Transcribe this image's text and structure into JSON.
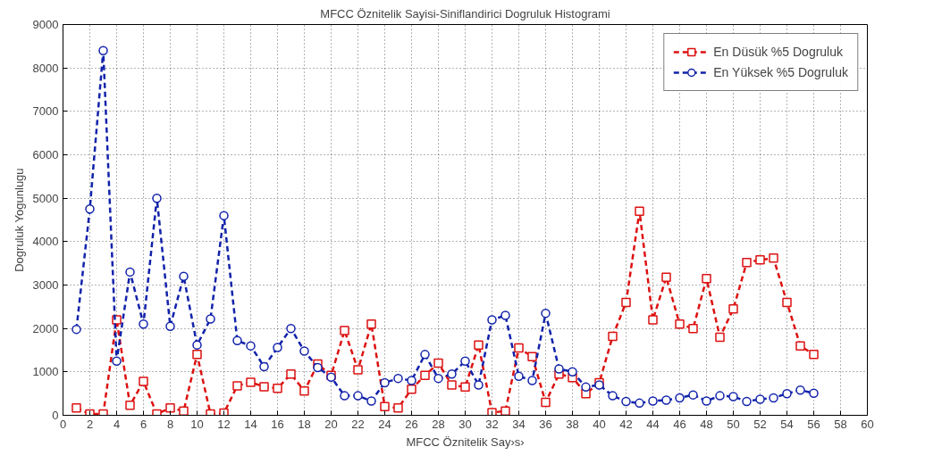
{
  "chart_data": {
    "type": "line",
    "title": "MFCC Öznitelik Sayisi-Siniflandirici Dogruluk Histogrami",
    "xlabel": "MFCC Öznitelik Say›s›",
    "ylabel": "Dogruluk Yogunlugu",
    "x": [
      1,
      2,
      3,
      4,
      5,
      6,
      7,
      8,
      9,
      10,
      11,
      12,
      13,
      14,
      15,
      16,
      17,
      18,
      19,
      20,
      21,
      22,
      23,
      24,
      25,
      26,
      27,
      28,
      29,
      30,
      31,
      32,
      33,
      34,
      35,
      36,
      37,
      38,
      39,
      40,
      41,
      42,
      43,
      44,
      45,
      46,
      47,
      48,
      49,
      50,
      51,
      52,
      53,
      54,
      55,
      56
    ],
    "series": [
      {
        "name": "En Düsük %5 Dogruluk",
        "color": "#dd1111",
        "marker": "square",
        "values": [
          170,
          30,
          30,
          2200,
          230,
          780,
          30,
          170,
          100,
          1400,
          30,
          50,
          680,
          760,
          660,
          620,
          950,
          560,
          1180,
          920,
          1950,
          1050,
          2100,
          200,
          170,
          600,
          920,
          1200,
          700,
          650,
          1620,
          60,
          100,
          1550,
          1350,
          300,
          950,
          870,
          500,
          750,
          1820,
          2600,
          4700,
          2200,
          3180,
          2100,
          2000,
          3150,
          1800,
          2450,
          3520,
          3580,
          3620,
          2600,
          1600,
          1400
        ]
      },
      {
        "name": "En Yüksek %5 Dogruluk",
        "color": "#1122aa",
        "marker": "circle",
        "values": [
          1980,
          4750,
          8400,
          1250,
          3300,
          2100,
          5000,
          2050,
          3200,
          1620,
          2220,
          4600,
          1720,
          1600,
          1120,
          1560,
          2000,
          1480,
          1100,
          880,
          450,
          450,
          330,
          750,
          850,
          800,
          1400,
          850,
          950,
          1250,
          700,
          2200,
          2300,
          900,
          800,
          2350,
          1070,
          1000,
          650,
          700,
          450,
          320,
          280,
          330,
          350,
          400,
          470,
          330,
          450,
          430,
          320,
          370,
          400,
          500,
          580,
          510
        ]
      }
    ],
    "xlim": [
      0,
      60
    ],
    "xticks": [
      0,
      2,
      4,
      6,
      8,
      10,
      12,
      14,
      16,
      18,
      20,
      22,
      24,
      26,
      28,
      30,
      32,
      34,
      36,
      38,
      40,
      42,
      44,
      46,
      48,
      50,
      52,
      54,
      56,
      58,
      60
    ],
    "ylim": [
      0,
      9000
    ],
    "yticks": [
      0,
      1000,
      2000,
      3000,
      4000,
      5000,
      6000,
      7000,
      8000,
      9000
    ],
    "grid": true,
    "legend": "top right",
    "line_style": "dashed"
  }
}
